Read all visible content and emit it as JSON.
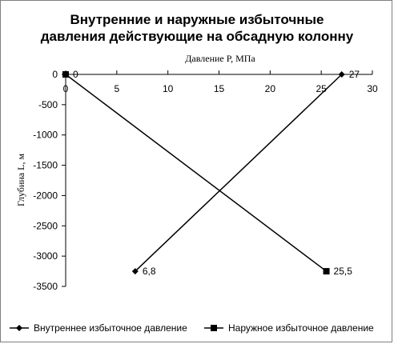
{
  "chart_data": {
    "type": "line",
    "title_lines": [
      "Внутренние и наружные избыточные",
      "давления действующие на обсадную колонну"
    ],
    "xlabel": "Давление P, МПа",
    "ylabel": "Глубина L, м",
    "xlim": [
      0,
      30
    ],
    "ylim": [
      -3500,
      0
    ],
    "x_ticks": [
      "0",
      "5",
      "10",
      "15",
      "20",
      "25",
      "30"
    ],
    "y_ticks": [
      "0",
      "-500",
      "-1000",
      "-1500",
      "-2000",
      "-2500",
      "-3000",
      "-3500"
    ],
    "x_tick_values": [
      0,
      5,
      10,
      15,
      20,
      25,
      30
    ],
    "y_tick_values": [
      0,
      -500,
      -1000,
      -1500,
      -2000,
      -2500,
      -3000,
      -3500
    ],
    "legend_position": "bottom",
    "grid": false,
    "series": [
      {
        "name": "Внутреннее избыточное давление",
        "marker": "diamond",
        "color": "#000000",
        "points": [
          {
            "x": 27,
            "y": 0,
            "label": "27"
          },
          {
            "x": 6.8,
            "y": -3250,
            "label": "6,8"
          }
        ]
      },
      {
        "name": "Наружное избыточное давление",
        "marker": "square",
        "color": "#000000",
        "points": [
          {
            "x": 0,
            "y": 0,
            "label": "0"
          },
          {
            "x": 25.5,
            "y": -3250,
            "label": "25,5"
          }
        ]
      }
    ]
  }
}
